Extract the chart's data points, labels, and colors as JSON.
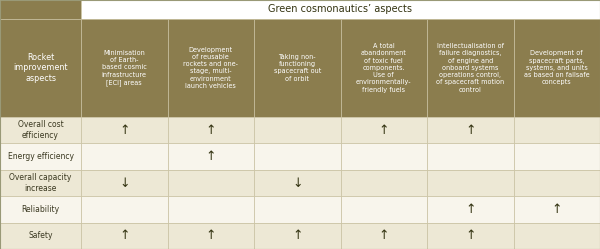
{
  "col_header_bg": "#8B7D4E",
  "col_header_text": "#FFFFFF",
  "row_bg_even": "#EDE8D5",
  "row_bg_odd": "#F8F5EC",
  "border_color": "#C8C0A0",
  "top_header_bg": "#FFFFFF",
  "top_left_bg": "#8B7D4E",
  "columns": [
    "Minimisation\nof Earth-\nbased cosmic\ninfrastructure\n[ECI] areas",
    "Development\nof reusable\nrockets and one-\nstage, multi-\nenvironment\nlaunch vehicles",
    "Taking non-\nfunctioning\nspacecraft out\nof orbit",
    "A total\nabandonment\nof toxic fuel\ncomponents.\nUse of\nenvironmentally-\nfriendly fuels",
    "Intellectualisation of\nfailure diagnostics,\nof engine and\nonboard systems\noperations control,\nof spacecraft motion\ncontrol",
    "Development of\nspacecraft parts,\nsystems, and units\nas based on failsafe\nconcepts"
  ],
  "rows": [
    "Overall cost\nefficiency",
    "Energy efficiency",
    "Overall capacity\nincrease",
    "Reliability",
    "Safety"
  ],
  "cells": [
    [
      "↑",
      "↑",
      "",
      "↑",
      "↑",
      ""
    ],
    [
      "",
      "↑",
      "",
      "",
      "",
      ""
    ],
    [
      "↓",
      "",
      "↓",
      "",
      "",
      ""
    ],
    [
      "",
      "",
      "",
      "",
      "↑",
      "↑"
    ],
    [
      "↑",
      "↑",
      "↑",
      "↑",
      "↑",
      ""
    ]
  ],
  "top_header_text": "Green cosmonautics’ aspects",
  "row_label_header": "Rocket\nimprovement\naspects",
  "row_label_text_color": "#555533",
  "arrow_color": "#444422"
}
